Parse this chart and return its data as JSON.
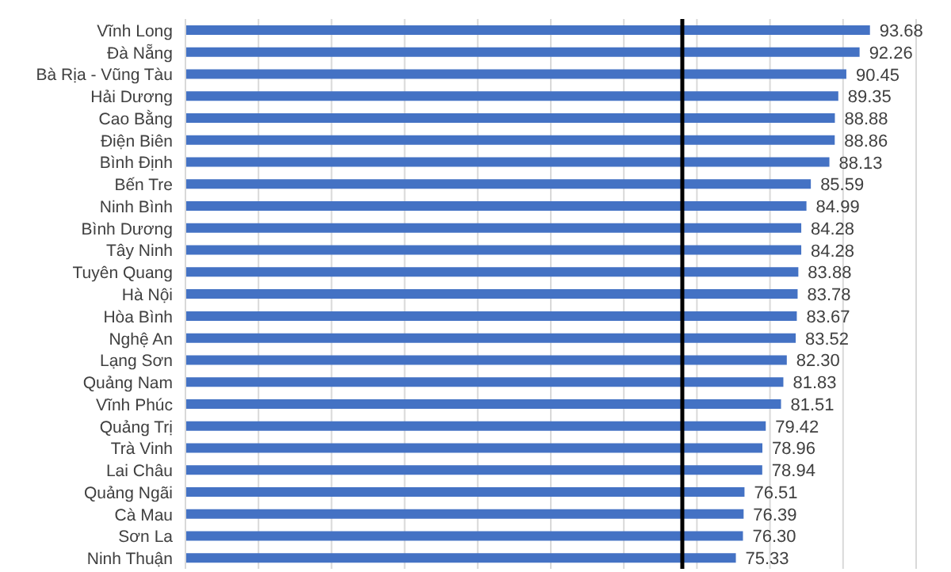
{
  "chart_data": {
    "type": "bar",
    "orientation": "horizontal",
    "categories": [
      "Vĩnh Long",
      "Đà Nẵng",
      "Bà Rịa - Vũng Tàu",
      "Hải Dương",
      "Cao Bằng",
      "Điện Biên",
      "Bình Định",
      "Bến Tre",
      "Ninh Bình",
      "Bình Dương",
      "Tây Ninh",
      "Tuyên Quang",
      "Hà Nội",
      "Hòa Bình",
      "Nghệ An",
      "Lạng Sơn",
      "Quảng Nam",
      "Vĩnh Phúc",
      "Quảng Trị",
      "Trà Vinh",
      "Lai Châu",
      "Quảng Ngãi",
      "Cà Mau",
      "Sơn La",
      "Ninh Thuận"
    ],
    "values": [
      93.68,
      92.26,
      90.45,
      89.35,
      88.88,
      88.86,
      88.13,
      85.59,
      84.99,
      84.28,
      84.28,
      83.88,
      83.78,
      83.67,
      83.52,
      82.3,
      81.83,
      81.51,
      79.42,
      78.96,
      78.94,
      76.51,
      76.39,
      76.3,
      75.33
    ],
    "value_labels": [
      "93.68",
      "92.26",
      "90.45",
      "89.35",
      "88.88",
      "88.86",
      "88.13",
      "85.59",
      "84.99",
      "84.28",
      "84.28",
      "83.88",
      "83.78",
      "83.67",
      "83.52",
      "82.30",
      "81.83",
      "81.51",
      "79.42",
      "78.96",
      "78.94",
      "76.51",
      "76.39",
      "76.30",
      "75.33"
    ],
    "color": "#4472c4",
    "grid": "x",
    "tick_labels": "y",
    "ref_lines": [
      {
        "axis": "x",
        "value": 68,
        "color": "#000000"
      }
    ]
  }
}
